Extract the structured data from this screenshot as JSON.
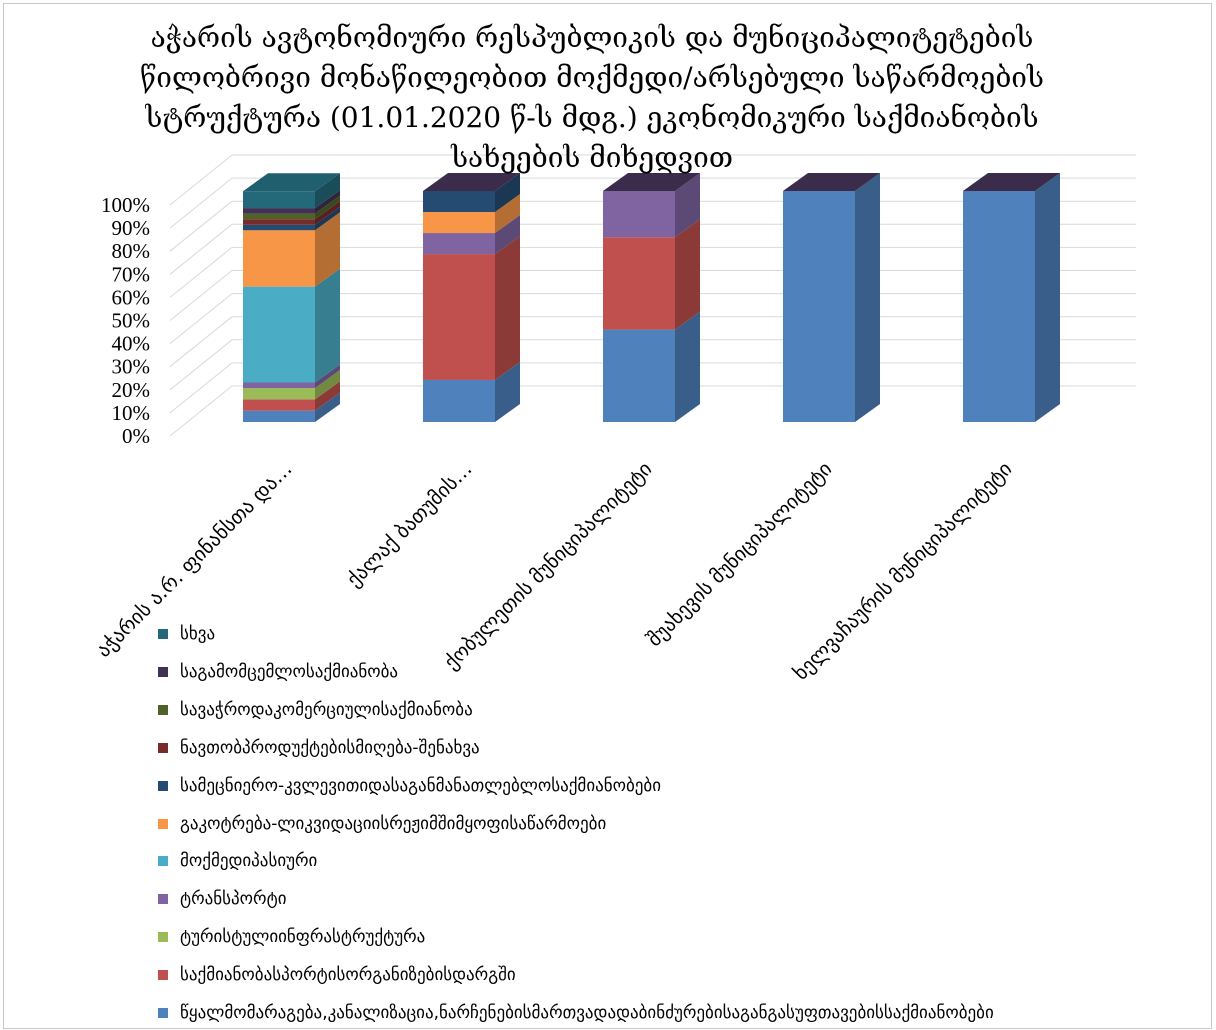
{
  "chart_data": {
    "type": "bar",
    "stacking": "percent",
    "view": "3d",
    "title": [
      "აჭარის ავტონომიური რესპუბლიკის და მუნიციპალიტეტების",
      "წილობრივი მონაწილეობით მოქმედი/არსებული საწარმოების",
      "სტრუქტურა (01.01.2020 წ-ს მდგ.) ეკონომიკური საქმიანობის",
      "სახეების მიხედვით"
    ],
    "ylim": [
      0,
      100
    ],
    "y_tick_labels": [
      "0%",
      "10%",
      "20%",
      "30%",
      "40%",
      "50%",
      "60%",
      "70%",
      "80%",
      "90%",
      "100%"
    ],
    "grid": true,
    "legend_position": "bottom-left",
    "categories": [
      "აჭარის ა.რ. ფინანსთა და…",
      "ქალაქ ბათუმის…",
      "ქობულეთის მუნიციპალიტეტი",
      "შუახევის მუნიციპალიტეტი",
      "ხელვაჩაურის მუნიციპალიტეტი"
    ],
    "series": [
      {
        "name": "წყალმომარაგება,კანალიზაცია,ნარჩენებისმართვადადაბინძურებისაგანგასუფთავებისსაქმიანობები",
        "color": "#4f81bd",
        "values": [
          4.9,
          18.2,
          40,
          100,
          100
        ]
      },
      {
        "name": "საქმიანობასპორტისორგანიზებისდარგში",
        "color": "#c0504d",
        "values": [
          4.9,
          54.5,
          40,
          0,
          0
        ]
      },
      {
        "name": "ტურისტულიინფრასტრუქტურა",
        "color": "#9bbb59",
        "values": [
          4.9,
          0,
          0,
          0,
          0
        ]
      },
      {
        "name": "ტრანსპორტი",
        "color": "#8064a2",
        "values": [
          2.4,
          9.1,
          20,
          0,
          0
        ]
      },
      {
        "name": "მოქმედიპასიური",
        "color": "#4bacc6",
        "values": [
          41.5,
          0,
          0,
          0,
          0
        ]
      },
      {
        "name": "გაკოტრება-ლიკვიდაციისრეჟიმშიმყოფისაწარმოები",
        "color": "#f79646",
        "values": [
          24.4,
          9.1,
          0,
          0,
          0
        ]
      },
      {
        "name": "სამეცნიერო-კვლევითიდასაგანმანათლებლოსაქმიანობები",
        "color": "#254b73",
        "values": [
          2.4,
          9.1,
          0,
          0,
          0
        ]
      },
      {
        "name": "ნავთობპროდუქტებისმიღება-შენახვა",
        "color": "#772c2a",
        "values": [
          2.4,
          0,
          0,
          0,
          0
        ]
      },
      {
        "name": "სავაჭროდაკომერციულისაქმიანობა",
        "color": "#4f6228",
        "values": [
          2.4,
          0,
          0,
          0,
          0
        ]
      },
      {
        "name": "საგამომცემლოსაქმიანობა",
        "color": "#403152",
        "values": [
          2.4,
          0,
          0,
          0,
          0
        ]
      },
      {
        "name": "სხვა",
        "color": "#23697a",
        "values": [
          7.3,
          0,
          0,
          0,
          0
        ]
      }
    ]
  }
}
